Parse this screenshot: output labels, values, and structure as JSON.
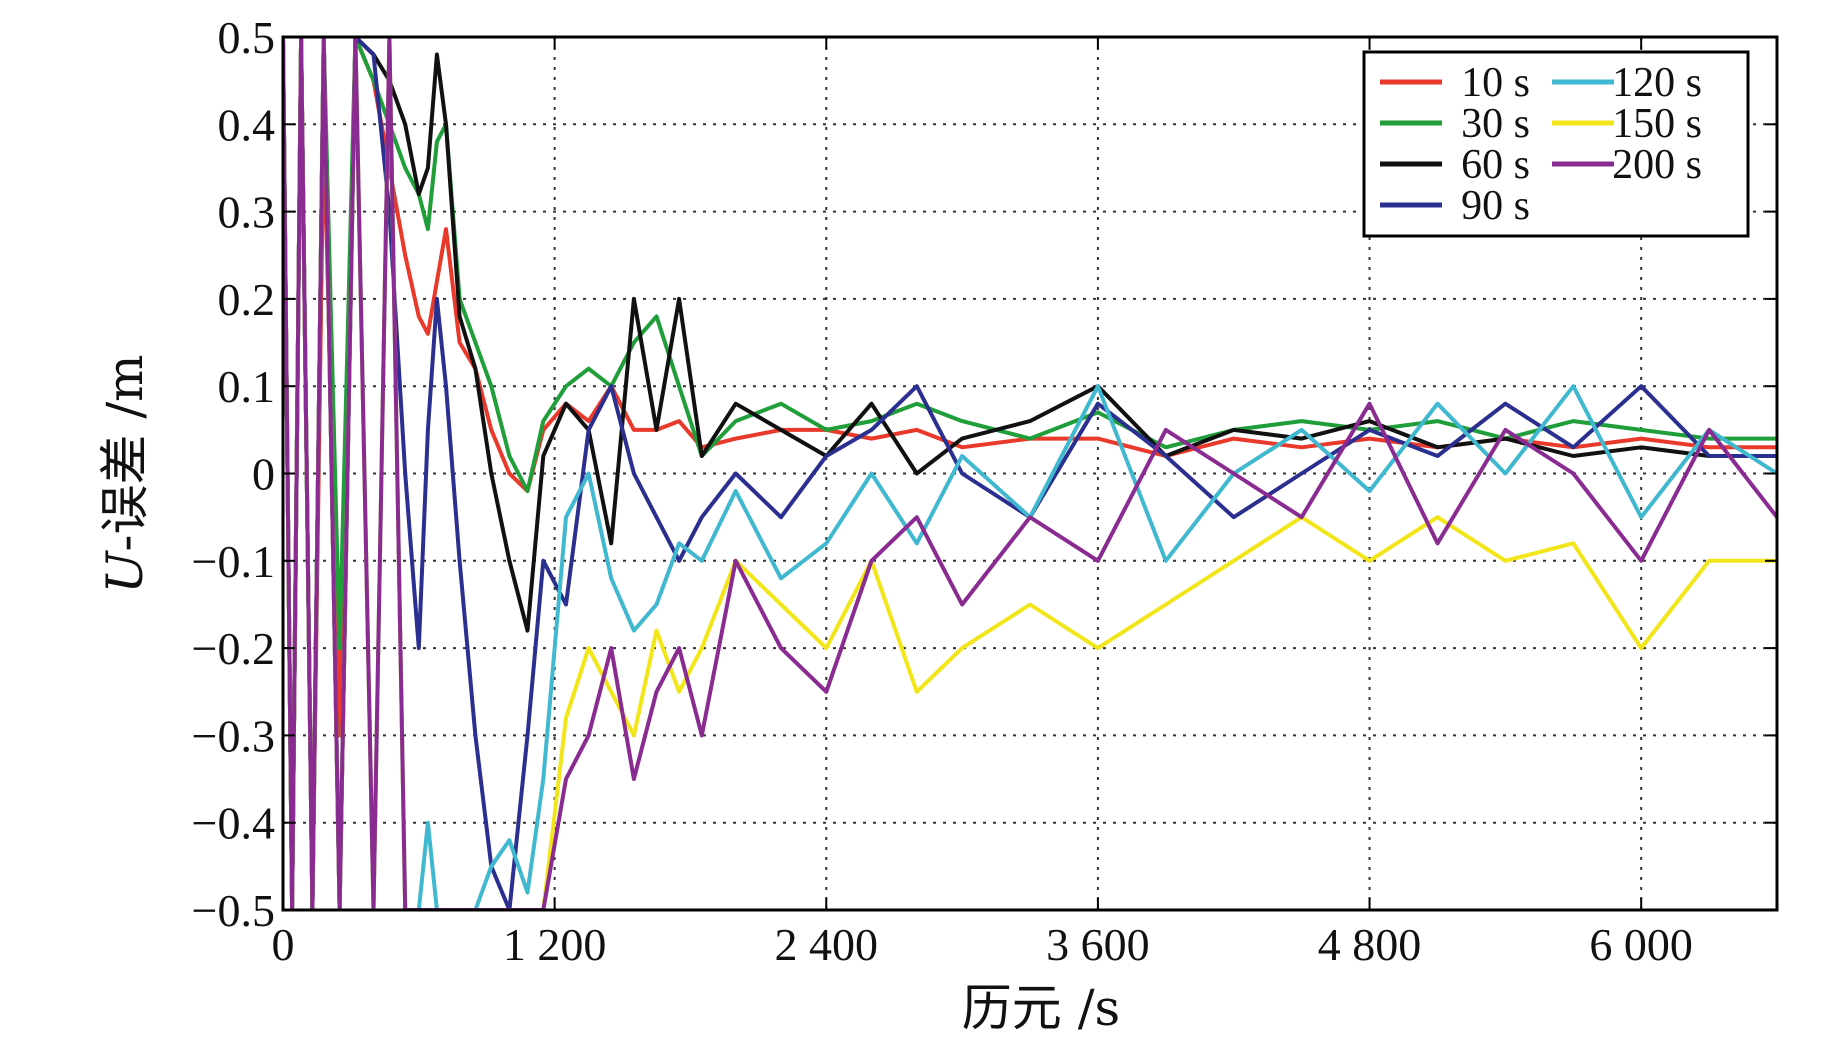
{
  "chart_data": {
    "type": "line",
    "title": "",
    "xlabel": "历元 /s",
    "ylabel": "U-误差 /m",
    "ylabel_italic_part": "U",
    "ylabel_rest": "-误差 /m",
    "xlim": [
      0,
      6600
    ],
    "ylim": [
      -0.5,
      0.5
    ],
    "x_ticks": [
      0,
      1200,
      2400,
      3600,
      4800,
      6000
    ],
    "x_tick_labels": [
      "0",
      "1 200",
      "2 400",
      "3 600",
      "4 800",
      "6 000"
    ],
    "y_ticks": [
      0.5,
      0.4,
      0.3,
      0.2,
      0.1,
      0,
      -0.1,
      -0.2,
      -0.3,
      -0.4,
      -0.5
    ],
    "y_tick_labels": [
      "0.5",
      "0.4",
      "0.3",
      "0.2",
      "0.1",
      "0",
      "−0.1",
      "−0.2",
      "−0.3",
      "−0.4",
      "−0.5"
    ],
    "grid": true,
    "legend_position": "top-right",
    "series": [
      {
        "name": "10 s",
        "color": "#e8392b",
        "x": [
          0,
          40,
          80,
          130,
          180,
          250,
          320,
          400,
          470,
          540,
          600,
          640,
          680,
          720,
          780,
          850,
          920,
          1000,
          1080,
          1150,
          1250,
          1350,
          1450,
          1550,
          1650,
          1750,
          1850,
          2000,
          2200,
          2400,
          2600,
          2800,
          3000,
          3300,
          3600,
          3900,
          4200,
          4500,
          4800,
          5100,
          5400,
          5700,
          6000,
          6300,
          6600
        ],
        "y": [
          0.5,
          -0.5,
          0.5,
          -0.5,
          0.4,
          -0.3,
          0.5,
          0.45,
          0.35,
          0.25,
          0.18,
          0.16,
          0.22,
          0.28,
          0.15,
          0.12,
          0.05,
          0.0,
          -0.02,
          0.05,
          0.08,
          0.06,
          0.1,
          0.05,
          0.05,
          0.06,
          0.03,
          0.04,
          0.05,
          0.05,
          0.04,
          0.05,
          0.03,
          0.04,
          0.04,
          0.02,
          0.04,
          0.03,
          0.04,
          0.03,
          0.04,
          0.03,
          0.04,
          0.03,
          0.03
        ]
      },
      {
        "name": "30 s",
        "color": "#1f9e3a",
        "x": [
          0,
          40,
          80,
          130,
          180,
          250,
          320,
          400,
          470,
          540,
          600,
          640,
          680,
          720,
          780,
          850,
          920,
          1000,
          1080,
          1150,
          1250,
          1350,
          1450,
          1550,
          1650,
          1750,
          1850,
          2000,
          2200,
          2400,
          2600,
          2800,
          3000,
          3300,
          3600,
          3900,
          4200,
          4500,
          4800,
          5100,
          5400,
          5700,
          6000,
          6300,
          6600
        ],
        "y": [
          0.5,
          -0.5,
          0.5,
          -0.5,
          0.5,
          -0.2,
          0.5,
          0.45,
          0.4,
          0.35,
          0.32,
          0.28,
          0.38,
          0.4,
          0.2,
          0.15,
          0.1,
          0.02,
          -0.02,
          0.06,
          0.1,
          0.12,
          0.1,
          0.15,
          0.18,
          0.1,
          0.02,
          0.06,
          0.08,
          0.05,
          0.06,
          0.08,
          0.06,
          0.04,
          0.07,
          0.03,
          0.05,
          0.06,
          0.05,
          0.06,
          0.04,
          0.06,
          0.05,
          0.04,
          0.04
        ]
      },
      {
        "name": "60 s",
        "color": "#111111",
        "x": [
          0,
          40,
          80,
          130,
          180,
          250,
          320,
          400,
          470,
          540,
          600,
          640,
          680,
          720,
          780,
          850,
          920,
          1000,
          1080,
          1150,
          1250,
          1350,
          1450,
          1550,
          1650,
          1750,
          1850,
          2000,
          2200,
          2400,
          2600,
          2800,
          3000,
          3300,
          3600,
          3900,
          4200,
          4500,
          4800,
          5100,
          5400,
          5700,
          6000,
          6300,
          6600
        ],
        "y": [
          0.5,
          -0.5,
          0.5,
          -0.5,
          0.5,
          -0.5,
          0.5,
          0.48,
          0.45,
          0.4,
          0.32,
          0.35,
          0.48,
          0.4,
          0.18,
          0.12,
          0.0,
          -0.1,
          -0.18,
          0.02,
          0.08,
          0.05,
          -0.08,
          0.2,
          0.05,
          0.2,
          0.02,
          0.08,
          0.05,
          0.02,
          0.08,
          0.0,
          0.04,
          0.06,
          0.1,
          0.02,
          0.05,
          0.04,
          0.06,
          0.03,
          0.04,
          0.02,
          0.03,
          0.02,
          0.02
        ]
      },
      {
        "name": "90 s",
        "color": "#2b2f8f",
        "x": [
          0,
          40,
          80,
          130,
          180,
          250,
          320,
          400,
          470,
          540,
          600,
          640,
          680,
          720,
          780,
          850,
          920,
          1000,
          1080,
          1150,
          1250,
          1350,
          1450,
          1550,
          1650,
          1750,
          1850,
          2000,
          2200,
          2400,
          2600,
          2800,
          3000,
          3300,
          3600,
          3900,
          4200,
          4500,
          4800,
          5100,
          5400,
          5700,
          6000,
          6300,
          6600
        ],
        "y": [
          0.5,
          -0.5,
          0.5,
          -0.5,
          0.5,
          -0.5,
          0.5,
          0.48,
          0.3,
          0.0,
          -0.2,
          0.05,
          0.2,
          0.1,
          -0.1,
          -0.3,
          -0.45,
          -0.5,
          -0.3,
          -0.1,
          -0.15,
          0.05,
          0.1,
          0.0,
          -0.05,
          -0.1,
          -0.05,
          0.0,
          -0.05,
          0.02,
          0.05,
          0.1,
          0.0,
          -0.05,
          0.08,
          0.02,
          -0.05,
          0.0,
          0.05,
          0.02,
          0.08,
          0.03,
          0.1,
          0.02,
          0.02
        ]
      },
      {
        "name": "120 s",
        "color": "#40b8d0",
        "x": [
          0,
          40,
          80,
          130,
          180,
          250,
          320,
          400,
          470,
          540,
          600,
          640,
          680,
          720,
          780,
          850,
          920,
          1000,
          1080,
          1150,
          1250,
          1350,
          1450,
          1550,
          1650,
          1750,
          1850,
          2000,
          2200,
          2400,
          2600,
          2800,
          3000,
          3300,
          3600,
          3900,
          4200,
          4500,
          4800,
          5100,
          5400,
          5700,
          6000,
          6300,
          6600
        ],
        "y": [
          0.5,
          -0.5,
          0.5,
          -0.5,
          0.5,
          -0.5,
          0.5,
          -0.5,
          0.5,
          -0.5,
          -0.5,
          -0.4,
          -0.5,
          -0.5,
          -0.5,
          -0.5,
          -0.45,
          -0.42,
          -0.48,
          -0.35,
          -0.05,
          0.0,
          -0.12,
          -0.18,
          -0.15,
          -0.08,
          -0.1,
          -0.02,
          -0.12,
          -0.08,
          0.0,
          -0.08,
          0.02,
          -0.05,
          0.1,
          -0.1,
          0.0,
          0.05,
          -0.02,
          0.08,
          0.0,
          0.1,
          -0.05,
          0.05,
          0.0
        ]
      },
      {
        "name": "150 s",
        "color": "#f2e61a",
        "x": [
          0,
          40,
          80,
          130,
          180,
          250,
          320,
          400,
          470,
          540,
          600,
          640,
          680,
          720,
          780,
          850,
          920,
          1000,
          1080,
          1150,
          1250,
          1350,
          1450,
          1550,
          1650,
          1750,
          1850,
          2000,
          2200,
          2400,
          2600,
          2800,
          3000,
          3300,
          3600,
          3900,
          4200,
          4500,
          4800,
          5100,
          5400,
          5700,
          6000,
          6300,
          6600
        ],
        "y": [
          0.5,
          -0.5,
          0.5,
          -0.5,
          0.5,
          -0.5,
          0.5,
          -0.5,
          0.5,
          -0.5,
          -0.5,
          -0.5,
          -0.5,
          -0.5,
          -0.5,
          -0.5,
          -0.5,
          -0.5,
          -0.5,
          -0.5,
          -0.28,
          -0.2,
          -0.25,
          -0.3,
          -0.18,
          -0.25,
          -0.2,
          -0.1,
          -0.15,
          -0.2,
          -0.1,
          -0.25,
          -0.2,
          -0.15,
          -0.2,
          -0.15,
          -0.1,
          -0.05,
          -0.1,
          -0.05,
          -0.1,
          -0.08,
          -0.2,
          -0.1,
          -0.1
        ]
      },
      {
        "name": "200 s",
        "color": "#8a2b91",
        "x": [
          0,
          40,
          80,
          130,
          180,
          250,
          320,
          400,
          470,
          540,
          600,
          640,
          680,
          720,
          780,
          850,
          920,
          1000,
          1080,
          1150,
          1250,
          1350,
          1450,
          1550,
          1650,
          1750,
          1850,
          2000,
          2200,
          2400,
          2600,
          2800,
          3000,
          3300,
          3600,
          3900,
          4200,
          4500,
          4800,
          5100,
          5400,
          5700,
          6000,
          6300,
          6600
        ],
        "y": [
          0.5,
          -0.5,
          0.5,
          -0.5,
          0.5,
          -0.5,
          0.5,
          -0.5,
          0.5,
          -0.5,
          -0.5,
          -0.5,
          -0.5,
          -0.5,
          -0.5,
          -0.5,
          -0.5,
          -0.5,
          -0.5,
          -0.5,
          -0.35,
          -0.3,
          -0.2,
          -0.35,
          -0.25,
          -0.2,
          -0.3,
          -0.1,
          -0.2,
          -0.25,
          -0.1,
          -0.05,
          -0.15,
          -0.05,
          -0.1,
          0.05,
          0.0,
          -0.05,
          0.08,
          -0.08,
          0.05,
          0.0,
          -0.1,
          0.05,
          -0.05
        ]
      }
    ]
  }
}
